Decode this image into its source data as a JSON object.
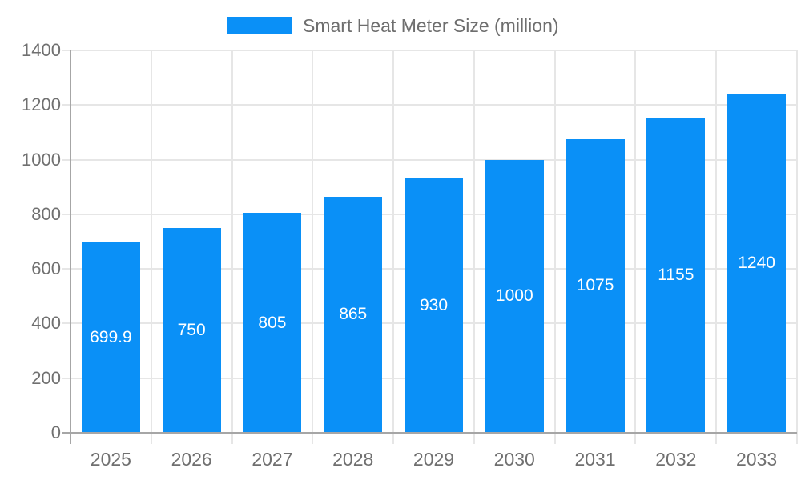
{
  "legend": {
    "label": "Smart Heat Meter Size (million)"
  },
  "chart_data": {
    "type": "bar",
    "title": "Smart Heat Meter Size (million)",
    "categories": [
      "2025",
      "2026",
      "2027",
      "2028",
      "2029",
      "2030",
      "2031",
      "2032",
      "2033"
    ],
    "values": [
      699.9,
      750,
      805,
      865,
      930,
      1000,
      1075,
      1155,
      1240
    ],
    "value_labels": [
      "699.9",
      "750",
      "805",
      "865",
      "930",
      "1000",
      "1075",
      "1155",
      "1240"
    ],
    "xlabel": "",
    "ylabel": "",
    "ylim": [
      0,
      1400
    ],
    "yticks": [
      0,
      200,
      400,
      600,
      800,
      1000,
      1200,
      1400
    ],
    "grid": true,
    "legend_position": "top",
    "colors": {
      "bar": "#0A90F7",
      "grid": "#E6E6E6",
      "axis": "#A6A6A6",
      "axis_text": "#707070",
      "legend_text": "#6E6E6E",
      "bar_label": "#FFFFFF",
      "background": "#FFFFFF"
    }
  }
}
